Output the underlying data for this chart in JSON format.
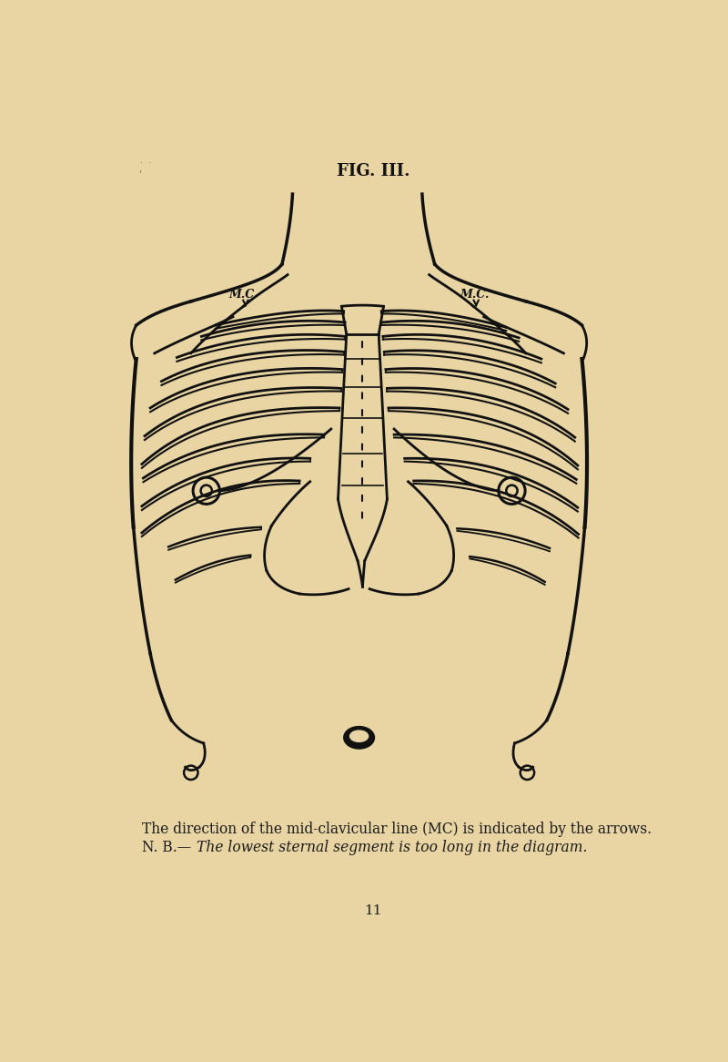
{
  "bg": "#e8d5a3",
  "lc": "#111111",
  "title": "FIG. III.",
  "cap1": "The direction of the mid-clavicular line (MC) is indicated by the arrows.",
  "cap2_norm": "N. B.—",
  "cap2_ital": "The lowest sternal segment is too long in the diagram.",
  "page": "11"
}
